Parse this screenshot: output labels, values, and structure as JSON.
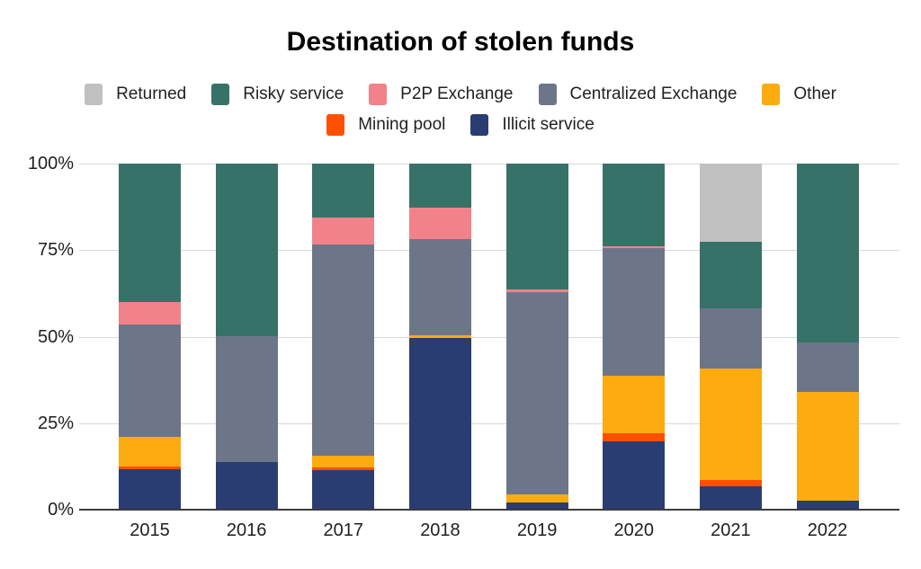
{
  "chart_data": {
    "type": "stacked-bar-100",
    "title": "Destination of stolen funds",
    "xlabel": "",
    "ylabel": "",
    "ylim": [
      0,
      100
    ],
    "grid": "horizontal",
    "legend_position": "top-center-two-rows",
    "categories": [
      "2015",
      "2016",
      "2017",
      "2018",
      "2019",
      "2020",
      "2021",
      "2022"
    ],
    "series": [
      {
        "name": "Illicit service",
        "color": "#2a3d72",
        "values": [
          11.8,
          13.7,
          11.3,
          49.5,
          2.2,
          19.8,
          6.8,
          2.5
        ]
      },
      {
        "name": "Mining pool",
        "color": "#fe5000",
        "values": [
          0.6,
          0,
          1.0,
          0,
          0,
          2.4,
          1.9,
          0
        ]
      },
      {
        "name": "Other",
        "color": "#fcab10",
        "values": [
          8.6,
          0,
          3.2,
          0.9,
          2.3,
          16.5,
          32.0,
          31.6
        ]
      },
      {
        "name": "Centralized Exchange",
        "color": "#6d7689",
        "values": [
          32.4,
          36.4,
          61.0,
          27.9,
          58.4,
          37.0,
          17.6,
          14.3
        ]
      },
      {
        "name": "P2P Exchange",
        "color": "#f28289",
        "values": [
          6.6,
          0,
          7.9,
          8.9,
          0.7,
          0.5,
          0,
          0
        ]
      },
      {
        "name": "Risky service",
        "color": "#377268",
        "values": [
          40.0,
          49.9,
          15.6,
          12.8,
          36.4,
          23.8,
          19.2,
          51.6
        ]
      },
      {
        "name": "Returned",
        "color": "#c0c0c0",
        "values": [
          0,
          0,
          0,
          0,
          0,
          0,
          22.5,
          0
        ]
      }
    ],
    "legend_rows": [
      [
        "Returned",
        "Risky service",
        "P2P Exchange",
        "Centralized Exchange",
        "Other"
      ],
      [
        "Mining pool",
        "Illicit service"
      ]
    ],
    "y_axis": {
      "ticks": [
        {
          "label": "0%",
          "value": 0
        },
        {
          "label": "25%",
          "value": 25
        },
        {
          "label": "50%",
          "value": 50
        },
        {
          "label": "75%",
          "value": 75
        },
        {
          "label": "100%",
          "value": 100
        }
      ]
    }
  }
}
